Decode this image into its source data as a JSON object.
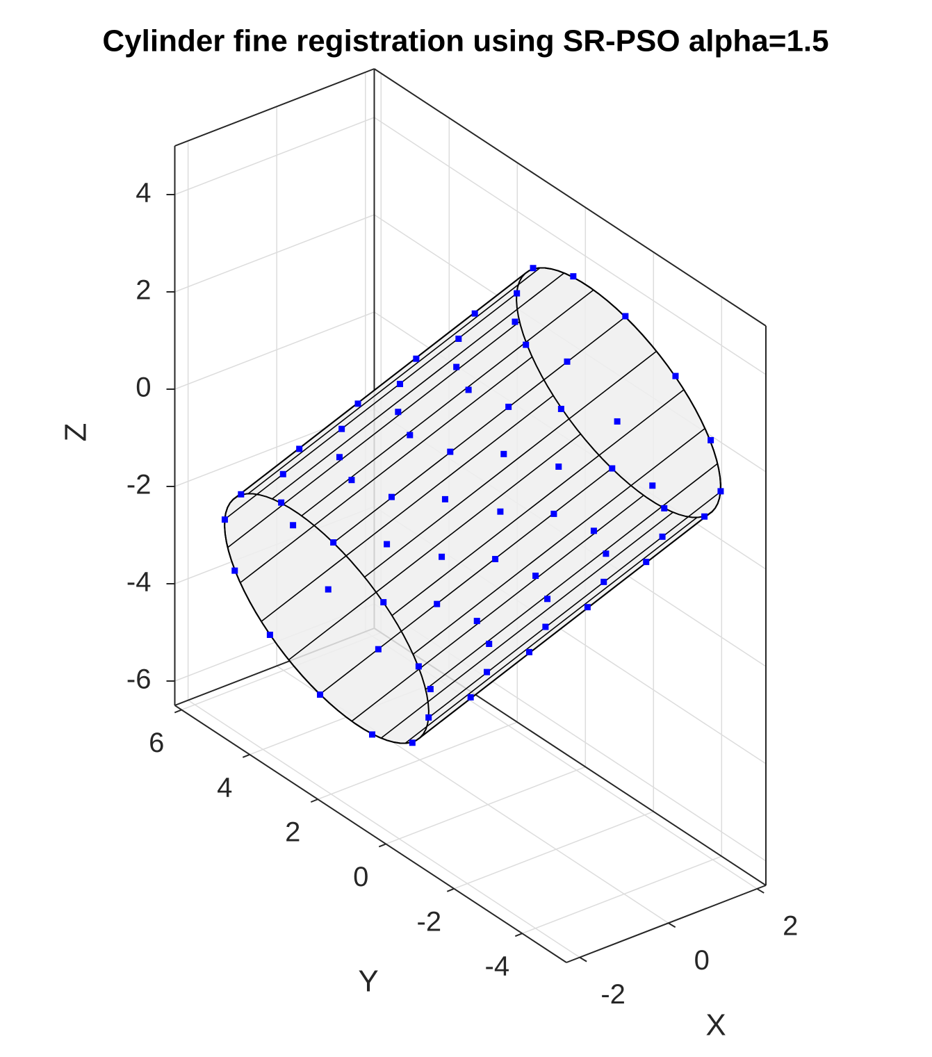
{
  "chart_data": {
    "type": "scatter3d",
    "title": "Cylinder fine registration using SR-PSO alpha=1.5",
    "xlabel": "X",
    "ylabel": "Y",
    "zlabel": "Z",
    "xlim": [
      -2.3,
      2.2
    ],
    "ylim": [
      -5.3,
      6.2
    ],
    "zlim": [
      -6.5,
      5
    ],
    "xticks": [
      -2,
      0,
      2
    ],
    "yticks": [
      -4,
      -2,
      0,
      2,
      4,
      6
    ],
    "zticks": [
      -6,
      -4,
      -2,
      0,
      2,
      4
    ],
    "grid": true,
    "series": [
      {
        "color": "#0000ff",
        "x": [
          -3.74,
          -2.81,
          -1.65,
          -0.6,
          0.09,
          0.21,
          -0.26,
          -1.19,
          -2.35,
          -3.4,
          -4.09,
          -4.21,
          -2.94,
          -2.01,
          -0.85,
          0.2,
          0.89,
          1.01,
          0.54,
          -0.39,
          -1.55,
          -2.6,
          -3.29,
          -3.41,
          -2.14,
          -1.21,
          -0.05,
          1.0,
          1.69,
          1.81,
          1.34,
          0.41,
          -0.75,
          -1.8,
          -2.49,
          -2.61,
          -1.34,
          -0.41,
          0.75,
          1.8,
          2.49,
          2.61,
          2.14,
          1.21,
          0.05,
          -1.0,
          -1.69,
          -1.81,
          -0.54,
          0.39,
          1.55,
          2.6,
          3.29,
          3.41,
          2.94,
          2.01,
          0.85,
          -0.2,
          -0.89,
          -1.01,
          0.26,
          1.19,
          2.35,
          3.4,
          4.09,
          4.21,
          3.74,
          2.81,
          1.65,
          0.6,
          -0.11,
          -0.23
        ],
        "y": [
          0.06,
          -0.26,
          0.07,
          0.96,
          2.15,
          3.34,
          4.2,
          4.52,
          4.19,
          3.3,
          2.11,
          0.92,
          -0.61,
          -0.93,
          -0.6,
          0.29,
          1.48,
          2.67,
          3.53,
          3.85,
          3.52,
          2.63,
          1.44,
          0.25,
          -1.29,
          -1.61,
          -1.28,
          -0.39,
          0.8,
          1.99,
          2.85,
          3.17,
          2.84,
          1.95,
          0.76,
          -0.43,
          -1.96,
          -2.28,
          -1.95,
          -1.06,
          0.13,
          1.32,
          2.18,
          2.5,
          2.17,
          1.28,
          0.09,
          -1.1,
          -2.64,
          -2.96,
          -2.63,
          -1.74,
          -0.55,
          0.64,
          1.5,
          1.82,
          1.49,
          0.6,
          -0.59,
          -1.78,
          -3.31,
          -3.63,
          -3.3,
          -2.41,
          -1.22,
          -0.03,
          0.83,
          1.15,
          0.82,
          -0.07,
          -1.26,
          -2.45
        ],
        "z": [
          -2.95,
          -3.95,
          -4.68,
          -4.94,
          -4.68,
          -3.95,
          -2.95,
          -1.95,
          -1.22,
          -0.96,
          -1.22,
          -1.95,
          -1.99,
          -2.99,
          -3.72,
          -3.98,
          -3.72,
          -2.99,
          -1.99,
          -0.99,
          -0.26,
          0,
          -0.26,
          -0.99,
          -1.03,
          -2.03,
          -2.76,
          -3.02,
          -2.76,
          -2.03,
          -1.03,
          -0.03,
          0.7,
          0.96,
          0.7,
          -0.03,
          -0.08,
          -1.08,
          -1.81,
          -2.07,
          -1.81,
          -1.08,
          -0.08,
          0.92,
          1.65,
          1.91,
          1.65,
          0.92,
          0.88,
          -0.12,
          -0.85,
          -1.11,
          -0.85,
          -0.12,
          0.88,
          1.88,
          2.61,
          2.87,
          2.61,
          1.88,
          1.84,
          0.84,
          0.11,
          -0.15,
          0.11,
          0.84,
          1.84,
          2.84,
          3.57,
          3.83,
          3.57,
          2.84
        ]
      }
    ]
  }
}
